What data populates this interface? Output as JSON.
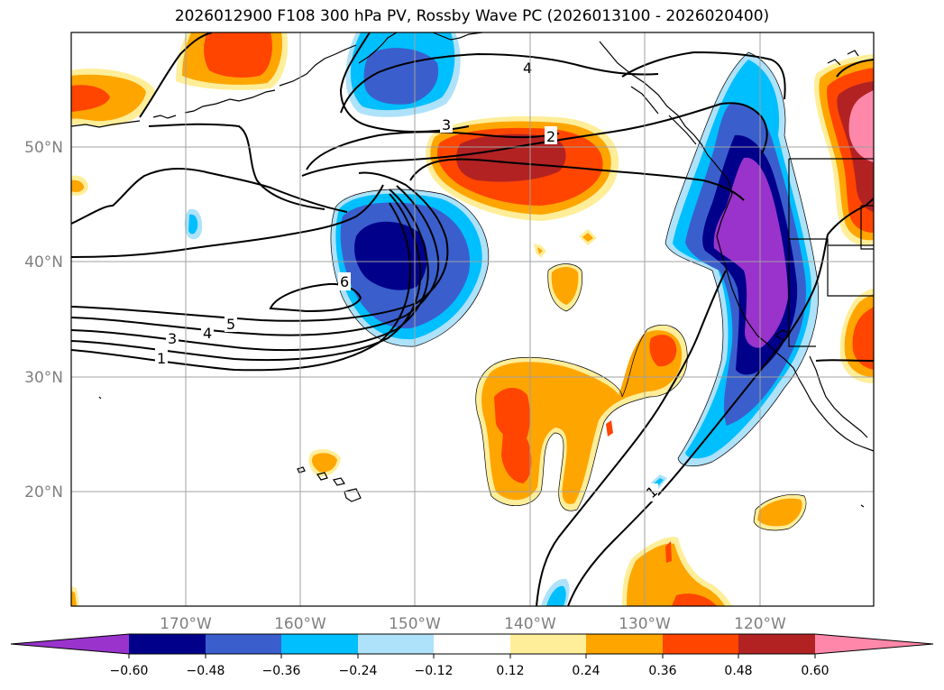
{
  "title": "2026012900 F108 300 hPa PV, Rossby Wave PC (2026013100 - 2026020400)",
  "lat_labels": [
    "50°N",
    "40°N",
    "30°N",
    "20°N"
  ],
  "lon_labels": [
    "170°W",
    "160°W",
    "150°W",
    "140°W",
    "130°W",
    "120°W"
  ],
  "colorbar": {
    "ticks": [
      "−0.60",
      "−0.48",
      "−0.36",
      "−0.24",
      "−0.12",
      "0.12",
      "0.24",
      "0.36",
      "0.48",
      "0.60"
    ],
    "colors": [
      "#9933cc",
      "#00008b",
      "#3a5fcd",
      "#00bfff",
      "#aee2fa",
      "#ffffff",
      "#ffee99",
      "#ffa500",
      "#ff4500",
      "#b22222",
      "#ff88aa"
    ]
  },
  "contour_labels": [
    "1",
    "1",
    "2",
    "3",
    "3",
    "4",
    "4",
    "5",
    "6"
  ]
}
